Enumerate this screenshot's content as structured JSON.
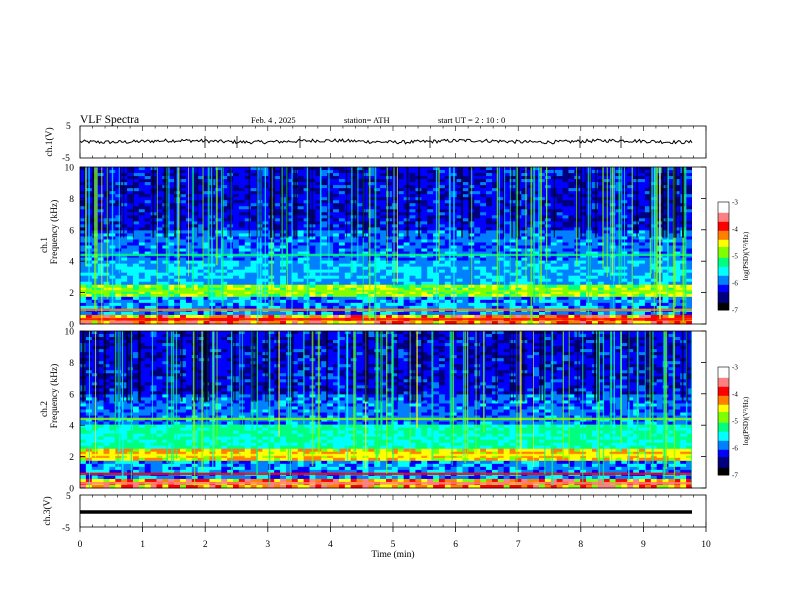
{
  "header": {
    "title": "VLF Spectra",
    "date": "Feb. 4 , 2025",
    "station": "station= ATH",
    "start": "start UT = 2 : 10 : 0"
  },
  "chart_data": [
    {
      "type": "line",
      "panel": "ch1-voltage",
      "ylabel": "ch.1(V)",
      "ylim": [
        -5,
        5
      ],
      "yticks": [
        -5,
        5
      ],
      "series": [
        {
          "values_description_level": 0,
          "typical_value": 0.2,
          "noise_amplitude": 0.6
        }
      ]
    },
    {
      "type": "heatmap",
      "panel": "ch1-spectrogram",
      "ylabel": "ch.1",
      "ylabel2": "Frequency (kHz)",
      "ylim": [
        0,
        10
      ],
      "yticks": [
        0,
        2,
        4,
        6,
        8,
        10
      ],
      "colorbar": {
        "label": "log(PSD)(V²/Hz)",
        "range": [
          -7,
          -3
        ],
        "ticks": [
          "-3",
          "-4",
          "-5",
          "-6",
          "-7"
        ]
      }
    },
    {
      "type": "heatmap",
      "panel": "ch2-spectrogram",
      "ylabel": "ch.2",
      "ylabel2": "Frequency (kHz)",
      "ylim": [
        0,
        10
      ],
      "yticks": [
        0,
        2,
        4,
        6,
        8,
        10
      ],
      "colorbar": {
        "label": "log(PSD)(V²/Hz)",
        "range": [
          -7,
          -3
        ],
        "ticks": [
          "-3",
          "-4",
          "-5",
          "-6",
          "-7"
        ]
      }
    },
    {
      "type": "line",
      "panel": "ch3-voltage",
      "ylabel": "ch.3(V)",
      "ylim": [
        -5,
        5
      ],
      "yticks": [
        -5,
        5
      ],
      "series": [
        {
          "typical_value": -1.0
        }
      ]
    }
  ],
  "xaxis": {
    "label": "Time (min)",
    "xlim": [
      0,
      10
    ],
    "ticks": [
      "0",
      "1",
      "2",
      "3",
      "4",
      "5",
      "6",
      "7",
      "8",
      "9",
      "10"
    ]
  },
  "colors": {
    "colormap": [
      "#000000",
      "#00007f",
      "#0000ff",
      "#0080ff",
      "#00ffff",
      "#00ff80",
      "#80ff00",
      "#ffff00",
      "#ff8000",
      "#ff0000",
      "#ff8080",
      "#ffffff"
    ]
  }
}
